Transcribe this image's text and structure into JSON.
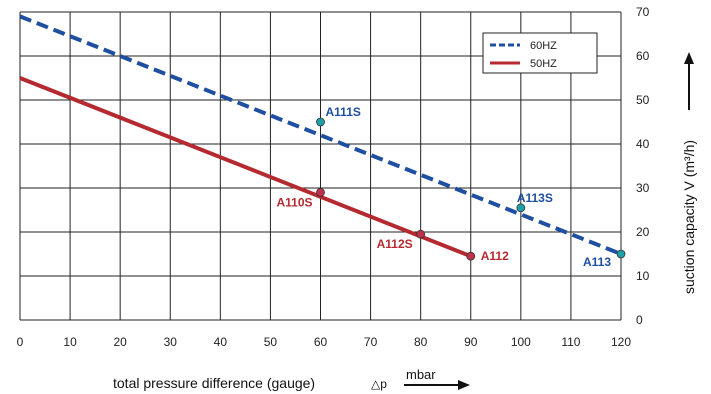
{
  "chart_data": {
    "type": "line",
    "x_label": "total pressure difference (gauge)",
    "x_symbol": "△p",
    "x_unit": "mbar",
    "y_label": "suction capacity V (m³/h)",
    "xlim": [
      0,
      120
    ],
    "ylim": [
      0,
      70
    ],
    "x_ticks": [
      0,
      10,
      20,
      30,
      40,
      50,
      60,
      70,
      80,
      90,
      100,
      110,
      120
    ],
    "y_ticks": [
      0,
      10,
      20,
      30,
      40,
      50,
      60,
      70
    ],
    "grid": true,
    "legend_position": "top-right",
    "series": [
      {
        "name": "60HZ",
        "color": "#1f4fa0",
        "style": "dashed",
        "x": [
          0,
          120
        ],
        "y": [
          69,
          15
        ],
        "points": [
          {
            "x": 60,
            "y": 45,
            "label": "A111S"
          },
          {
            "x": 100,
            "y": 25.5,
            "label": "A113S"
          },
          {
            "x": 120,
            "y": 15,
            "label": "A113"
          }
        ]
      },
      {
        "name": "50HZ",
        "color": "#b52a30",
        "style": "solid",
        "x": [
          0,
          90
        ],
        "y": [
          55,
          14.5
        ],
        "points": [
          {
            "x": 60,
            "y": 29,
            "label": "A110S"
          },
          {
            "x": 80,
            "y": 19.5,
            "label": "A112S"
          },
          {
            "x": 90,
            "y": 14.5,
            "label": "A112"
          }
        ]
      }
    ]
  }
}
